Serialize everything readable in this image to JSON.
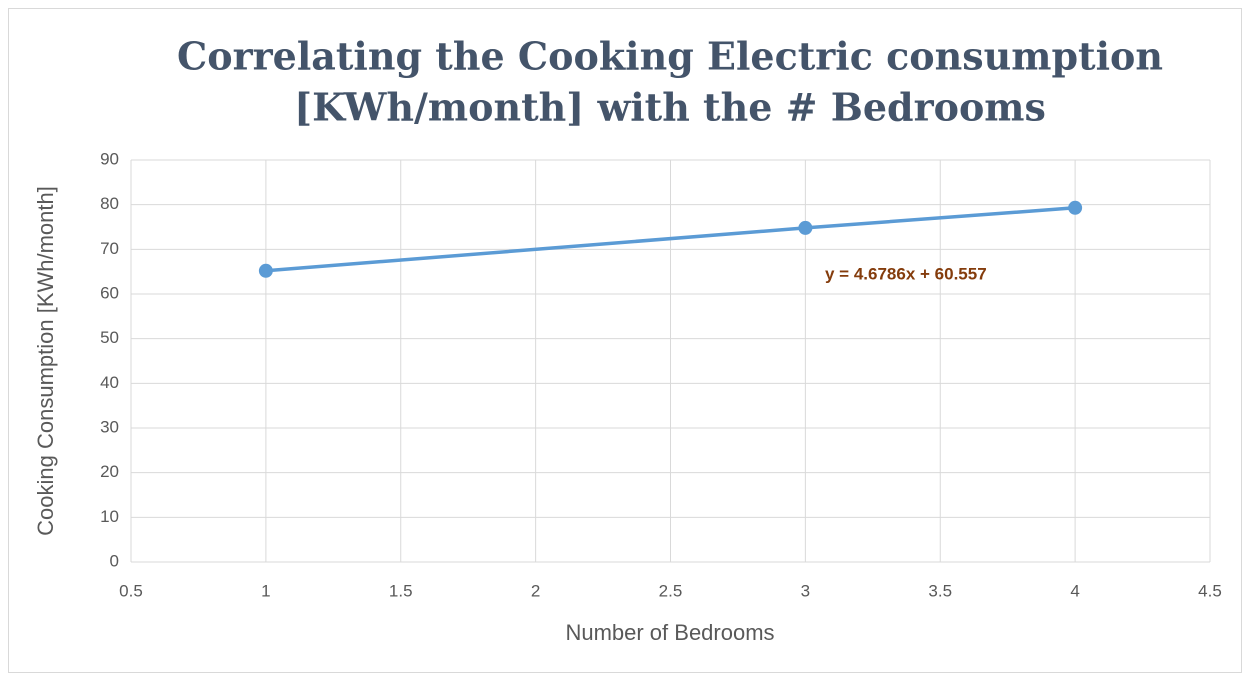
{
  "chart_data": {
    "type": "line",
    "title": [
      "Correlating the Cooking Electric consumption",
      "[KWh/month] with the # Bedrooms"
    ],
    "x_label": "Number of Bedrooms",
    "y_label": "Cooking Consumption [KWh/month]",
    "annotation": "y = 4.6786x + 60.557",
    "annotation_color": "#843c0c",
    "x": [
      1,
      3,
      4
    ],
    "series": [
      {
        "name": "Cooking Consumption",
        "color": "#5b9bd5",
        "values": [
          65.2,
          74.8,
          79.3
        ]
      }
    ],
    "xlim": [
      0.5,
      4.5
    ],
    "xticks": [
      0.5,
      1,
      1.5,
      2,
      2.5,
      3,
      3.5,
      4,
      4.5
    ],
    "ylim": [
      0,
      90
    ],
    "yticks": [
      0,
      10,
      20,
      30,
      40,
      50,
      60,
      70,
      80,
      90
    ],
    "grid": true
  }
}
